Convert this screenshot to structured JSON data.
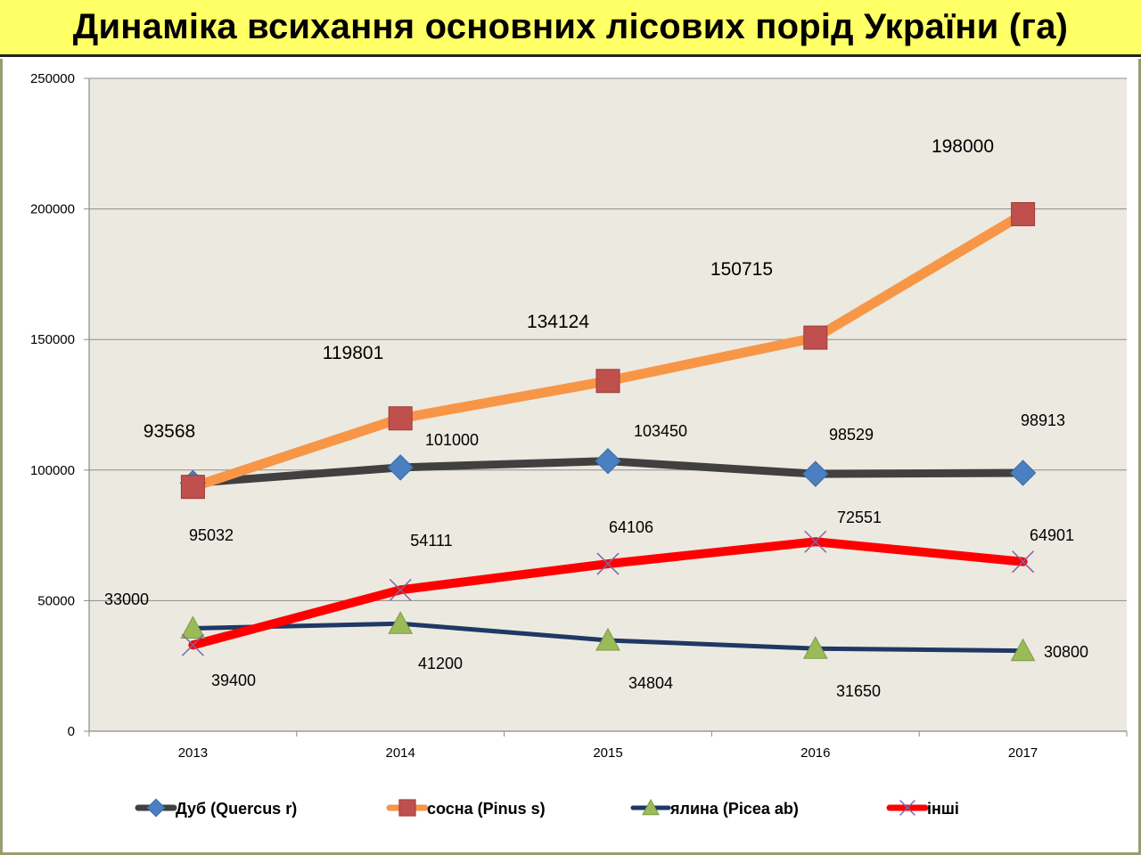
{
  "page": {
    "title": "Динаміка всихання основних лісових порід України (га)"
  },
  "colors": {
    "title_bg": "#ffff66",
    "plot_bg": "#ece9e0",
    "oak": "#404040",
    "oak_marker": "#4a7fc1",
    "pine": "#f79646",
    "pine_marker": "#c0504d",
    "spruce": "#1f3864",
    "spruce_marker": "#9bbb59",
    "other": "#ff0000",
    "other_marker": "#8064a2"
  },
  "chart_data": {
    "type": "line",
    "title": "Динаміка всихання основних лісових порід України (га)",
    "xlabel": "",
    "ylabel": "",
    "ylim": [
      0,
      250000
    ],
    "yticks": [
      "0",
      "50000",
      "100000",
      "150000",
      "200000",
      "250000"
    ],
    "categories": [
      "2013",
      "2014",
      "2015",
      "2016",
      "2017"
    ],
    "grid": true,
    "legend_position": "bottom",
    "series": [
      {
        "name": "Дуб (Quercus r)",
        "values": [
          95032,
          101000,
          103450,
          98529,
          98913
        ],
        "marker": "diamond-icon"
      },
      {
        "name": "сосна (Pinus s)",
        "values": [
          93568,
          119801,
          134124,
          150715,
          198000
        ],
        "marker": "square-icon"
      },
      {
        "name": "ялина (Picea ab)",
        "values": [
          39400,
          41200,
          34804,
          31650,
          30800
        ],
        "marker": "triangle-icon"
      },
      {
        "name": "інші",
        "values": [
          33000,
          54111,
          64106,
          72551,
          64901
        ],
        "marker": "x-icon"
      }
    ],
    "data_labels": [
      [
        "95032",
        "101000",
        "103450",
        "98529",
        "98913"
      ],
      [
        "93568",
        "119801",
        "134124",
        "150715",
        "198000"
      ],
      [
        "39400",
        "41200",
        "34804",
        "31650",
        "30800"
      ],
      [
        "33000",
        "54111",
        "64106",
        "72551",
        "64901"
      ]
    ]
  }
}
